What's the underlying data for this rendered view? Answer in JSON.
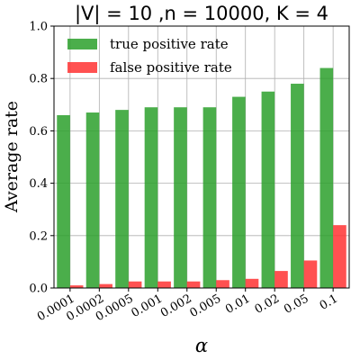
{
  "chart_data": {
    "type": "bar",
    "title": "|V| = 10 ,n = 10000, K = 4",
    "xlabel": "α",
    "ylabel": "Average rate",
    "categories": [
      "0.0001",
      "0.0002",
      "0.0005",
      "0.001",
      "0.002",
      "0.005",
      "0.01",
      "0.02",
      "0.05",
      "0.1"
    ],
    "series": [
      {
        "name": "true positive rate",
        "color": "#2ca02c",
        "values": [
          0.66,
          0.67,
          0.68,
          0.69,
          0.69,
          0.69,
          0.73,
          0.75,
          0.78,
          0.84
        ]
      },
      {
        "name": "false positive rate",
        "color": "#ff3333",
        "values": [
          0.01,
          0.015,
          0.025,
          0.025,
          0.025,
          0.03,
          0.035,
          0.065,
          0.105,
          0.24
        ]
      }
    ],
    "ylim": [
      0,
      1.0
    ],
    "yticks": [
      "0.0",
      "0.2",
      "0.4",
      "0.6",
      "0.8",
      "1.0"
    ],
    "grid": true,
    "legend_position": "top-left"
  }
}
